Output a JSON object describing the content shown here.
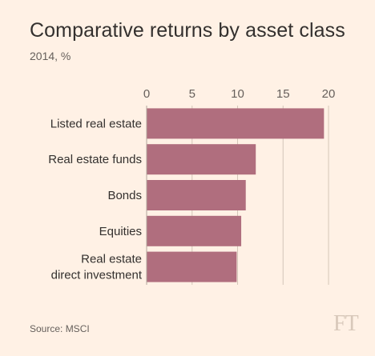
{
  "title": "Comparative returns by asset class",
  "subtitle": "2014, %",
  "source": "Source: MSCI",
  "logo": "FT",
  "colors": {
    "bar": "#b06e7e",
    "grid": "#d4c6b8",
    "text": "#33302e",
    "background": "#fff1e5"
  },
  "chart_data": {
    "type": "bar",
    "orientation": "horizontal",
    "title": "Comparative returns by asset class",
    "subtitle": "2014, %",
    "categories": [
      "Listed real estate",
      "Real estate funds",
      "Bonds",
      "Equities",
      "Real estate direct investment"
    ],
    "category_lines": [
      [
        "Listed real estate"
      ],
      [
        "Real estate funds"
      ],
      [
        "Bonds"
      ],
      [
        "Equities"
      ],
      [
        "Real estate",
        "direct investment"
      ]
    ],
    "values": [
      19.5,
      12.0,
      10.9,
      10.4,
      9.9
    ],
    "xlim": [
      0,
      20
    ],
    "xticks": [
      0,
      5,
      10,
      15,
      20
    ],
    "xaxis_position": "top",
    "grid": true,
    "source": "Source: MSCI"
  }
}
